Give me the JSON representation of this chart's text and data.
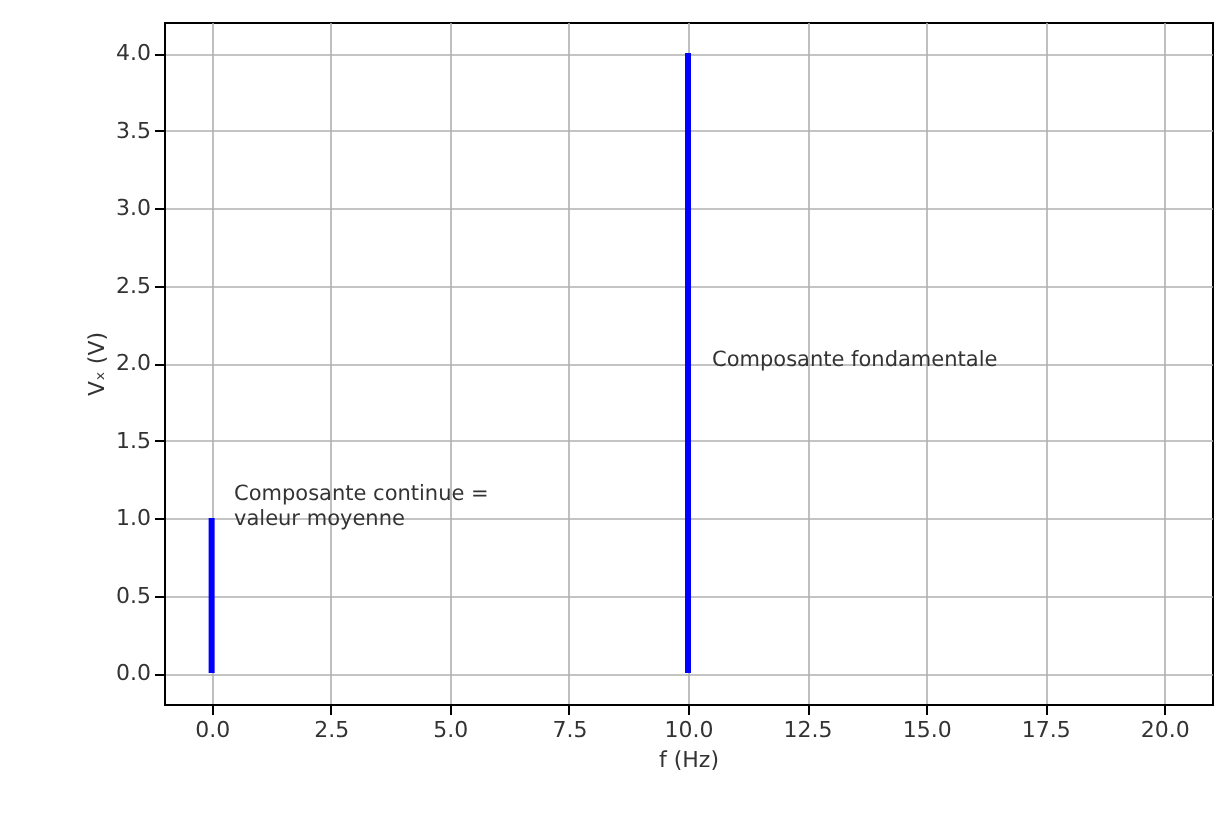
{
  "chart_data": {
    "type": "bar",
    "xlabel": "f (Hz)",
    "ylabel": "Vₓ (V)",
    "x": [
      0,
      10
    ],
    "series": [
      {
        "color": "#0000ff",
        "values": [
          1,
          4
        ]
      }
    ],
    "xlim": [
      -1,
      21
    ],
    "xticks": [
      {
        "value": 0,
        "label": "0.0"
      },
      {
        "value": 2.5,
        "label": "2.5"
      },
      {
        "value": 5,
        "label": "5.0"
      },
      {
        "value": 7.5,
        "label": "7.5"
      },
      {
        "value": 10,
        "label": "10.0"
      },
      {
        "value": 12.5,
        "label": "12.5"
      },
      {
        "value": 15,
        "label": "15.0"
      },
      {
        "value": 17.5,
        "label": "17.5"
      },
      {
        "value": 20,
        "label": "20.0"
      }
    ],
    "ylim": [
      -0.2,
      4.2
    ],
    "yticks": [
      {
        "value": 0,
        "label": "0.0"
      },
      {
        "value": 0.5,
        "label": "0.5"
      },
      {
        "value": 1,
        "label": "1.0"
      },
      {
        "value": 1.5,
        "label": "1.5"
      },
      {
        "value": 2,
        "label": "2.0"
      },
      {
        "value": 2.5,
        "label": "2.5"
      },
      {
        "value": 3,
        "label": "3.0"
      },
      {
        "value": 3.5,
        "label": "3.5"
      },
      {
        "value": 4,
        "label": "4.0"
      }
    ],
    "grid": true,
    "annotations": [
      "Composante continue =\n valeur moyenne",
      "Composante fondamentale"
    ]
  }
}
